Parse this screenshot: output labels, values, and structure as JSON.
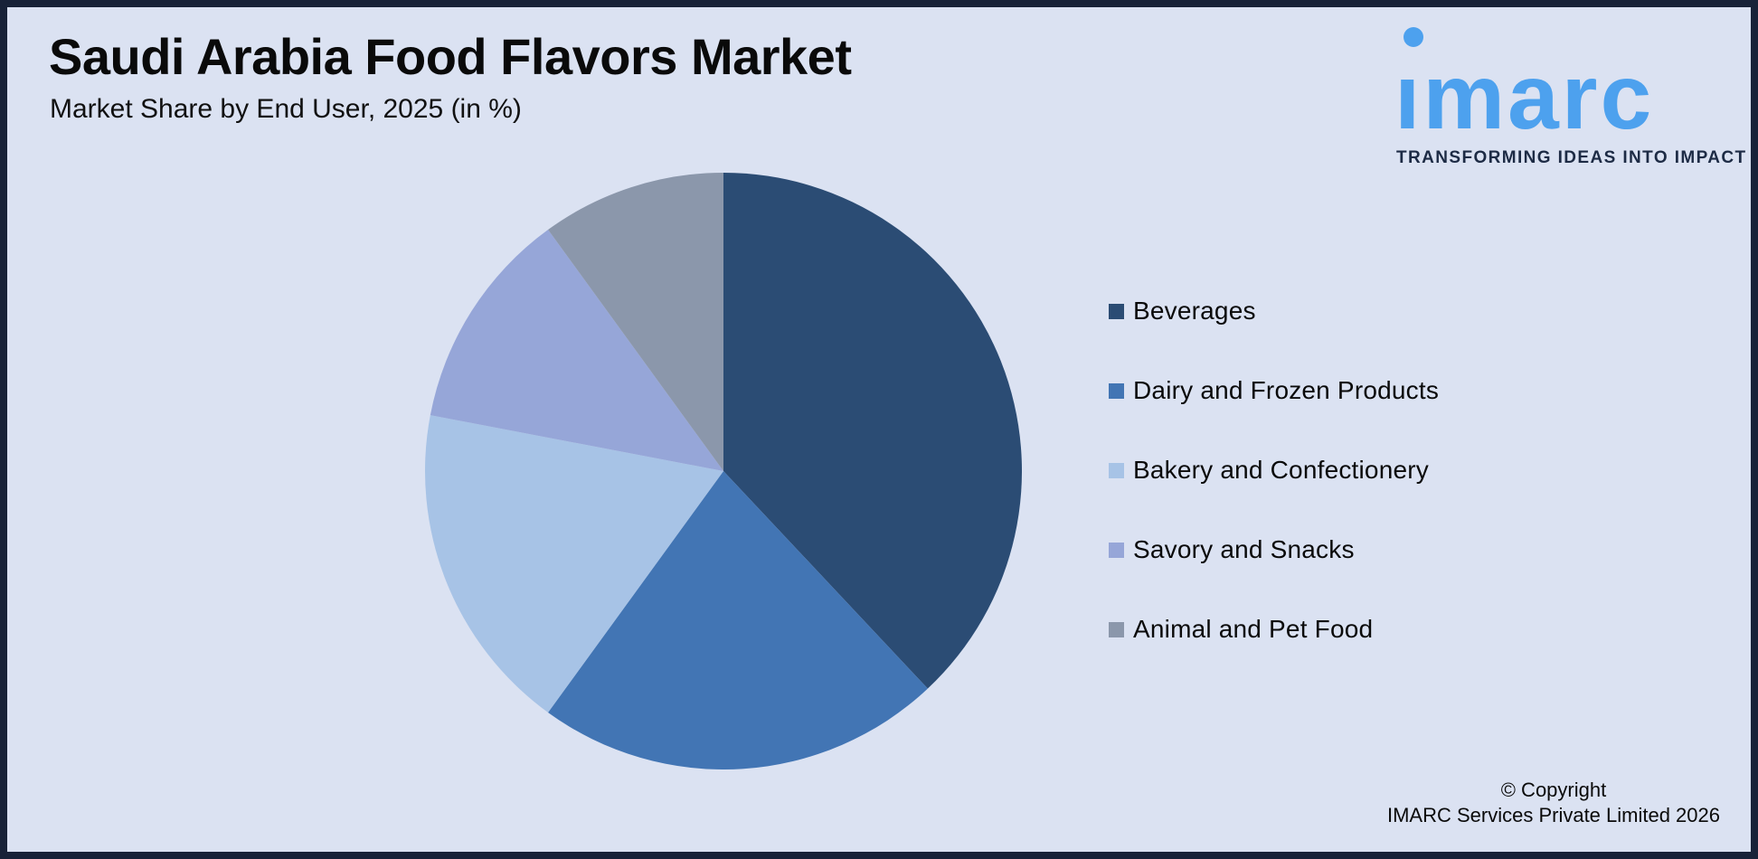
{
  "header": {
    "title": "Saudi Arabia Food Flavors Market",
    "subtitle": "Market Share by End User, 2025 (in %)"
  },
  "logo": {
    "wordmark": "imarc",
    "tagline": "TRANSFORMING IDEAS INTO IMPACT",
    "brand_blue": "#4da1ee",
    "tagline_color": "#1d2b45"
  },
  "chart_data": {
    "type": "pie",
    "title": "Saudi Arabia Food Flavors Market",
    "subtitle": "Market Share by End User, 2025 (in %)",
    "unit": "%",
    "start_angle_deg": 0,
    "direction": "clockwise",
    "legend_position": "right",
    "data_labels_shown": false,
    "slices": [
      {
        "label": "Beverages",
        "value": 38,
        "color": "#2b4c74"
      },
      {
        "label": "Dairy and Frozen Products",
        "value": 22,
        "color": "#4275b4"
      },
      {
        "label": "Bakery and Confectionery",
        "value": 18,
        "color": "#a7c3e6"
      },
      {
        "label": "Savory and Snacks",
        "value": 12,
        "color": "#96a6d8"
      },
      {
        "label": "Animal and Pet Food",
        "value": 10,
        "color": "#8b97ab"
      }
    ]
  },
  "footer": {
    "copyright_line1": "© Copyright",
    "copyright_line2": "IMARC Services Private Limited 2026"
  },
  "colors": {
    "background": "#dbe2f2",
    "frame_border": "#182238"
  }
}
